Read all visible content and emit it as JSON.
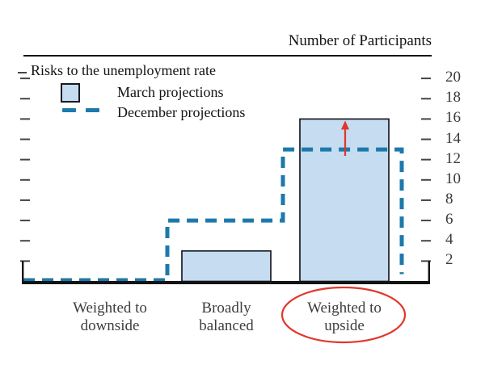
{
  "chart_data": {
    "type": "bar",
    "title": "Number of Participants",
    "subtitle_left": "Risks to the unemployment rate",
    "categories": [
      {
        "lines": [
          "Weighted to",
          "downside"
        ]
      },
      {
        "lines": [
          "Broadly",
          "balanced"
        ]
      },
      {
        "lines": [
          "Weighted to",
          "upside"
        ]
      }
    ],
    "series": [
      {
        "name": "March projections",
        "style": "bar",
        "values": [
          0,
          3,
          16
        ]
      },
      {
        "name": "December projections",
        "style": "dashed-step-line",
        "values": [
          0,
          6,
          13
        ]
      }
    ],
    "yticks": [
      2,
      4,
      6,
      8,
      10,
      12,
      14,
      16,
      18,
      20
    ],
    "ylim": [
      0,
      22
    ],
    "legend_position": "top-left",
    "grid": false,
    "annotations": [
      {
        "type": "arrow",
        "category_index": 2,
        "from_value": 13,
        "to_value": 16,
        "meaning": "increase from December to March"
      },
      {
        "type": "ellipse-highlight",
        "target": "category-label",
        "category_index": 2
      }
    ]
  },
  "colors": {
    "bar_fill": "#c5dcf1",
    "bar_stroke": "#1a1a24",
    "december_line": "#1d79ab",
    "annotation_red": "#e0372a",
    "axis_black": "#131313",
    "tick_gray": "#454545",
    "label_gray": "#3e3e3e"
  }
}
